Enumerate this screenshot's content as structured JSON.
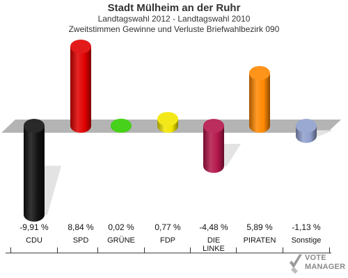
{
  "header": {
    "title": "Stadt Mülheim an der Ruhr",
    "subtitle1": "Landtagswahl 2012 - Landtagswahl 2010",
    "subtitle2": "Zweitstimmen Gewinne und Verluste Briefwahlbezirk 090"
  },
  "chart_data": {
    "type": "bar",
    "categories": [
      "CDU",
      "SPD",
      "GRÜNE",
      "FDP",
      "DIE LINKE",
      "PIRATEN",
      "Sonstige"
    ],
    "category_lines": [
      [
        "CDU"
      ],
      [
        "SPD"
      ],
      [
        "GRÜNE"
      ],
      [
        "FDP"
      ],
      [
        "DIE",
        "LINKE"
      ],
      [
        "PIRATEN"
      ],
      [
        "Sonstige"
      ]
    ],
    "values": [
      -9.91,
      8.84,
      0.02,
      0.77,
      -4.48,
      5.89,
      -1.13
    ],
    "value_labels": [
      "-9,91 %",
      "8,84 %",
      "0,02 %",
      "0,77 %",
      "-4,48 %",
      "5,89 %",
      "-1,13 %"
    ],
    "colors": [
      "#111111",
      "#e00000",
      "#33cc00",
      "#f2e600",
      "#b3164a",
      "#ff8800",
      "#8f9fcc"
    ],
    "unit": "%",
    "grid": false,
    "legend": "none"
  },
  "logo": {
    "line1": "VOTE",
    "line2": "MANAGER"
  }
}
